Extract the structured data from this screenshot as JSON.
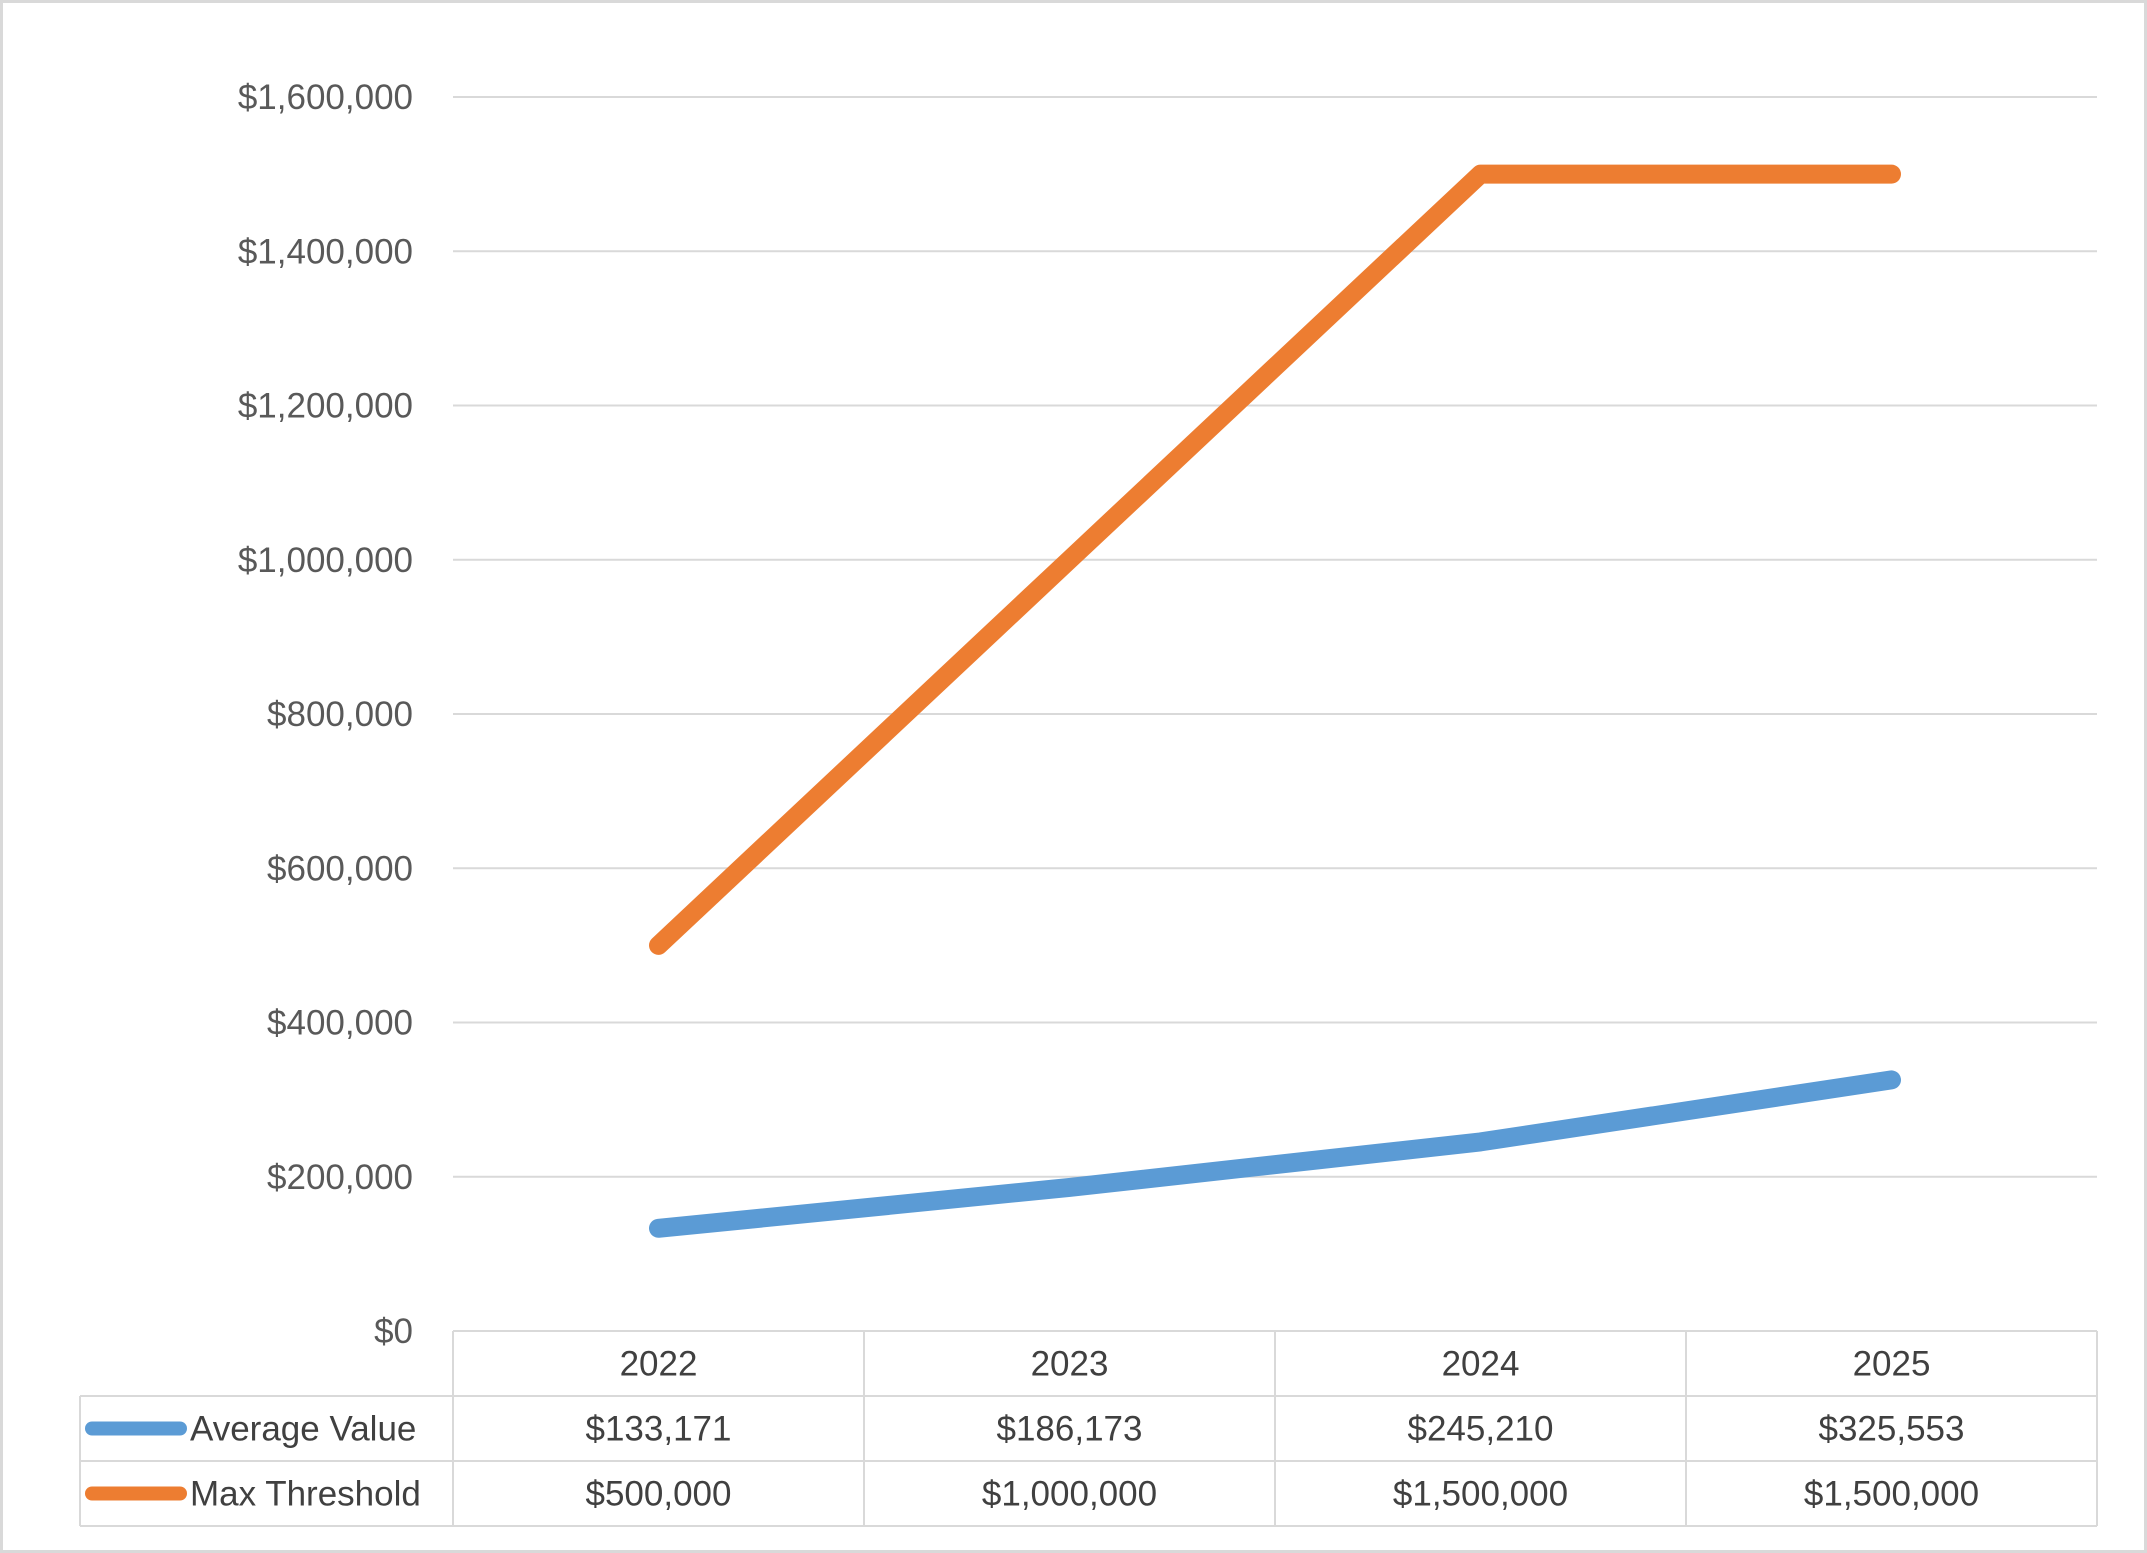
{
  "chart_data": {
    "type": "line",
    "categories": [
      "2022",
      "2023",
      "2024",
      "2025"
    ],
    "series": [
      {
        "name": "Average Value",
        "values": [
          133171,
          186173,
          245210,
          325553
        ],
        "labels": [
          "$133,171",
          "$186,173",
          "$245,210",
          "$325,553"
        ],
        "color": "#5B9BD5"
      },
      {
        "name": "Max Threshold",
        "values": [
          500000,
          1000000,
          1500000,
          1500000
        ],
        "labels": [
          "$500,000",
          "$1,000,000",
          "$1,500,000",
          "$1,500,000"
        ],
        "color": "#ED7D31"
      }
    ],
    "ylim": [
      0,
      1600000
    ],
    "yticks": [
      0,
      200000,
      400000,
      600000,
      800000,
      1000000,
      1200000,
      1400000,
      1600000
    ],
    "ytick_labels": [
      "$0",
      "$200,000",
      "$400,000",
      "$600,000",
      "$800,000",
      "$1,000,000",
      "$1,200,000",
      "$1,400,000",
      "$1,600,000"
    ],
    "title": "",
    "xlabel": "",
    "ylabel": "",
    "grid": true,
    "legend": "data-table"
  }
}
